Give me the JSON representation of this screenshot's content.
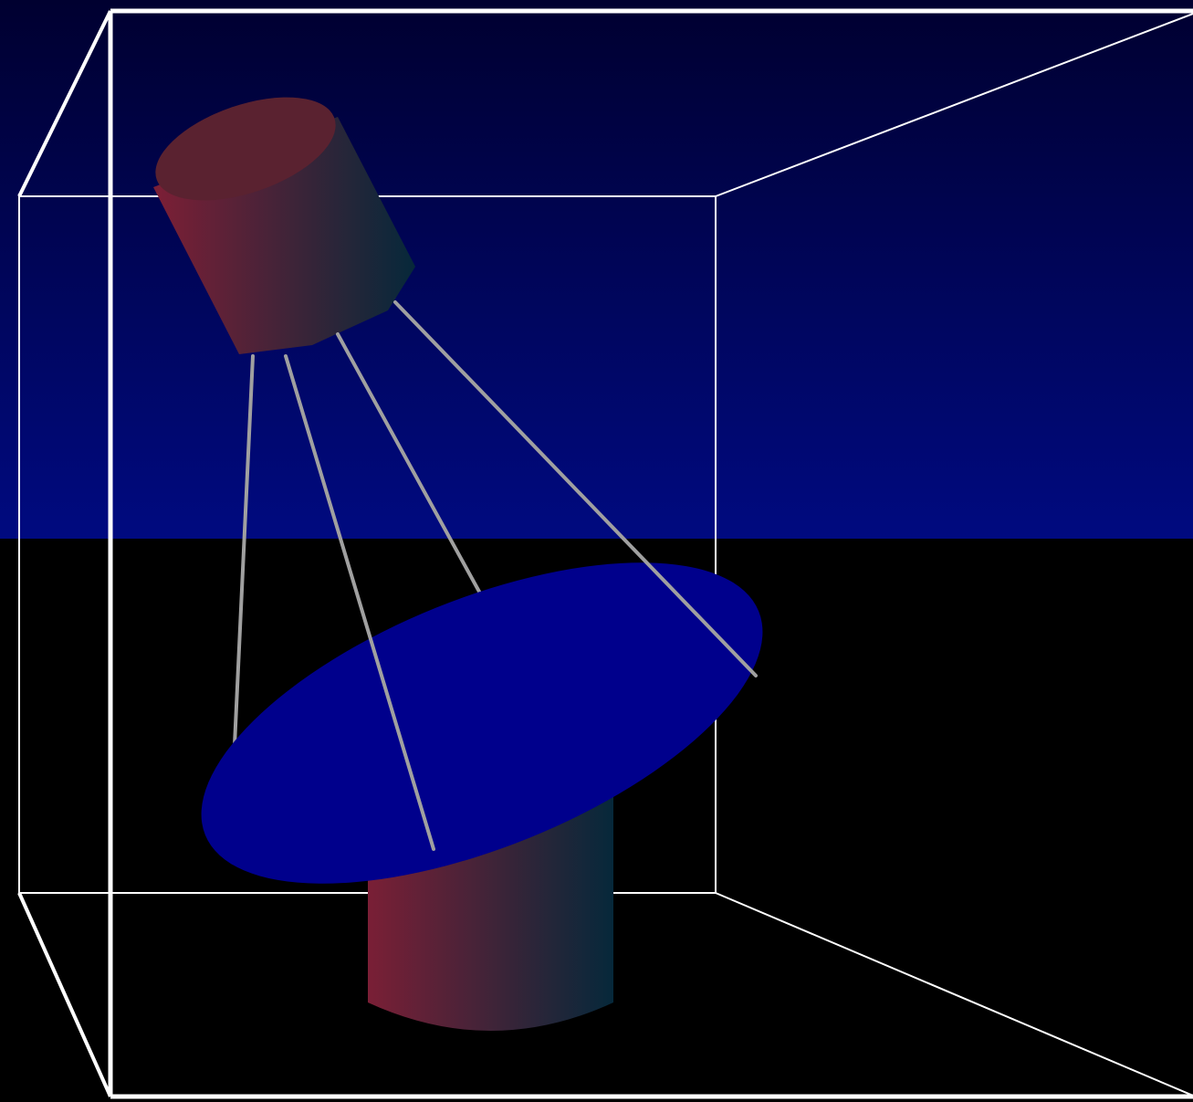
{
  "scene": {
    "colors": {
      "sky_top": "#000030",
      "sky_bottom": "#000a80",
      "floor": "#000000",
      "box_edges": "#ffffff",
      "struts": "#a0a0a0",
      "dish": "#00008c",
      "cylinder_gradient_start": "#7a1f36",
      "cylinder_gradient_end": "#06283a",
      "cylinder_top": "#5a2230"
    },
    "objects": [
      "wireframe-box",
      "feed-horn-cylinder",
      "support-struts",
      "dish-reflector",
      "pedestal-cylinder"
    ]
  }
}
